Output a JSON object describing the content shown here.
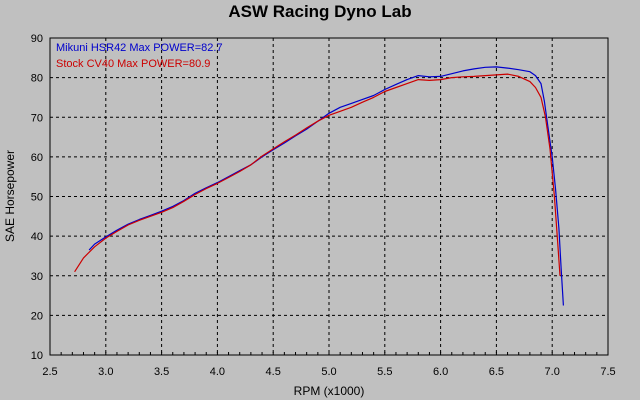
{
  "chart_data": {
    "type": "line",
    "title": "ASW Racing Dyno Lab",
    "xlabel": "RPM (x1000)",
    "ylabel": "SAE Horsepower",
    "xlim": [
      2.5,
      7.5
    ],
    "ylim": [
      10,
      90
    ],
    "x_ticks": [
      "2.5",
      "3.0",
      "3.5",
      "4.0",
      "4.5",
      "5.0",
      "5.5",
      "6.0",
      "6.5",
      "7.0",
      "7.5"
    ],
    "y_ticks": [
      "10",
      "20",
      "30",
      "40",
      "50",
      "60",
      "70",
      "80",
      "90"
    ],
    "grid": true,
    "legend_position": "top-left",
    "series": [
      {
        "name": "Mikuni HSR42  Max POWER=82.7",
        "color": "#0000cc",
        "x": [
          2.85,
          2.9,
          3.0,
          3.1,
          3.2,
          3.3,
          3.4,
          3.5,
          3.6,
          3.7,
          3.8,
          3.9,
          4.0,
          4.1,
          4.2,
          4.3,
          4.4,
          4.5,
          4.6,
          4.7,
          4.8,
          4.9,
          5.0,
          5.1,
          5.2,
          5.3,
          5.4,
          5.5,
          5.6,
          5.7,
          5.8,
          5.9,
          6.0,
          6.1,
          6.2,
          6.3,
          6.4,
          6.5,
          6.6,
          6.7,
          6.8,
          6.85,
          6.9,
          6.93,
          6.96,
          7.0,
          7.03,
          7.06,
          7.08,
          7.1
        ],
        "y": [
          36.5,
          38.0,
          39.8,
          41.5,
          43.0,
          44.2,
          45.2,
          46.3,
          47.5,
          49.0,
          50.8,
          52.2,
          53.5,
          55.0,
          56.5,
          58.0,
          60.0,
          61.8,
          63.5,
          65.3,
          67.0,
          69.0,
          71.0,
          72.5,
          73.5,
          74.5,
          75.5,
          77.0,
          78.3,
          79.5,
          80.5,
          80.2,
          80.3,
          81.0,
          81.7,
          82.2,
          82.6,
          82.7,
          82.4,
          82.0,
          81.5,
          80.5,
          78.5,
          74.0,
          68.0,
          60.0,
          52.0,
          42.0,
          32.0,
          22.5
        ]
      },
      {
        "name": "Stock CV40  Max POWER=80.9",
        "color": "#cc0000",
        "x": [
          2.72,
          2.8,
          2.9,
          3.0,
          3.1,
          3.2,
          3.3,
          3.4,
          3.5,
          3.6,
          3.7,
          3.8,
          3.9,
          4.0,
          4.1,
          4.2,
          4.3,
          4.4,
          4.5,
          4.6,
          4.7,
          4.8,
          4.9,
          5.0,
          5.1,
          5.2,
          5.3,
          5.4,
          5.5,
          5.6,
          5.7,
          5.8,
          5.9,
          6.0,
          6.1,
          6.2,
          6.3,
          6.4,
          6.5,
          6.6,
          6.7,
          6.8,
          6.85,
          6.9,
          6.94,
          6.98,
          7.02,
          7.05,
          7.07
        ],
        "y": [
          31.0,
          34.5,
          37.3,
          39.5,
          41.2,
          42.8,
          44.0,
          45.0,
          46.0,
          47.2,
          48.8,
          50.5,
          52.0,
          53.3,
          54.8,
          56.3,
          58.0,
          60.2,
          62.0,
          63.8,
          65.5,
          67.3,
          69.0,
          70.5,
          71.5,
          72.5,
          73.8,
          75.0,
          76.5,
          77.5,
          78.5,
          79.5,
          79.3,
          79.5,
          80.0,
          80.2,
          80.3,
          80.5,
          80.7,
          80.9,
          80.3,
          79.0,
          77.5,
          75.0,
          70.0,
          62.0,
          50.0,
          38.0,
          30.0
        ]
      }
    ]
  }
}
